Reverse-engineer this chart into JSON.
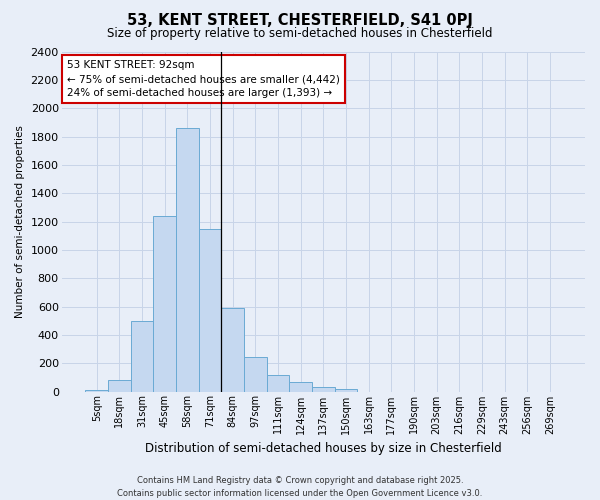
{
  "title1": "53, KENT STREET, CHESTERFIELD, S41 0PJ",
  "title2": "Size of property relative to semi-detached houses in Chesterfield",
  "xlabel": "Distribution of semi-detached houses by size in Chesterfield",
  "ylabel": "Number of semi-detached properties",
  "categories": [
    "5sqm",
    "18sqm",
    "31sqm",
    "45sqm",
    "58sqm",
    "71sqm",
    "84sqm",
    "97sqm",
    "111sqm",
    "124sqm",
    "137sqm",
    "150sqm",
    "163sqm",
    "177sqm",
    "190sqm",
    "203sqm",
    "216sqm",
    "229sqm",
    "243sqm",
    "256sqm",
    "269sqm"
  ],
  "bar_values": [
    10,
    80,
    500,
    1240,
    1860,
    1150,
    590,
    245,
    115,
    65,
    35,
    20,
    0,
    0,
    0,
    0,
    0,
    0,
    0,
    0,
    0
  ],
  "bar_color": "#c5d8f0",
  "bar_edge_color": "#6aaad4",
  "vline_index": 6,
  "annotation_text": "53 KENT STREET: 92sqm\n← 75% of semi-detached houses are smaller (4,442)\n24% of semi-detached houses are larger (1,393) →",
  "annotation_box_color": "#ffffff",
  "annotation_box_edge": "#cc0000",
  "vline_color": "#000000",
  "ylim": [
    0,
    2400
  ],
  "yticks": [
    0,
    200,
    400,
    600,
    800,
    1000,
    1200,
    1400,
    1600,
    1800,
    2000,
    2200,
    2400
  ],
  "grid_color": "#c8d4e8",
  "background_color": "#e8eef8",
  "footer": "Contains HM Land Registry data © Crown copyright and database right 2025.\nContains public sector information licensed under the Open Government Licence v3.0."
}
